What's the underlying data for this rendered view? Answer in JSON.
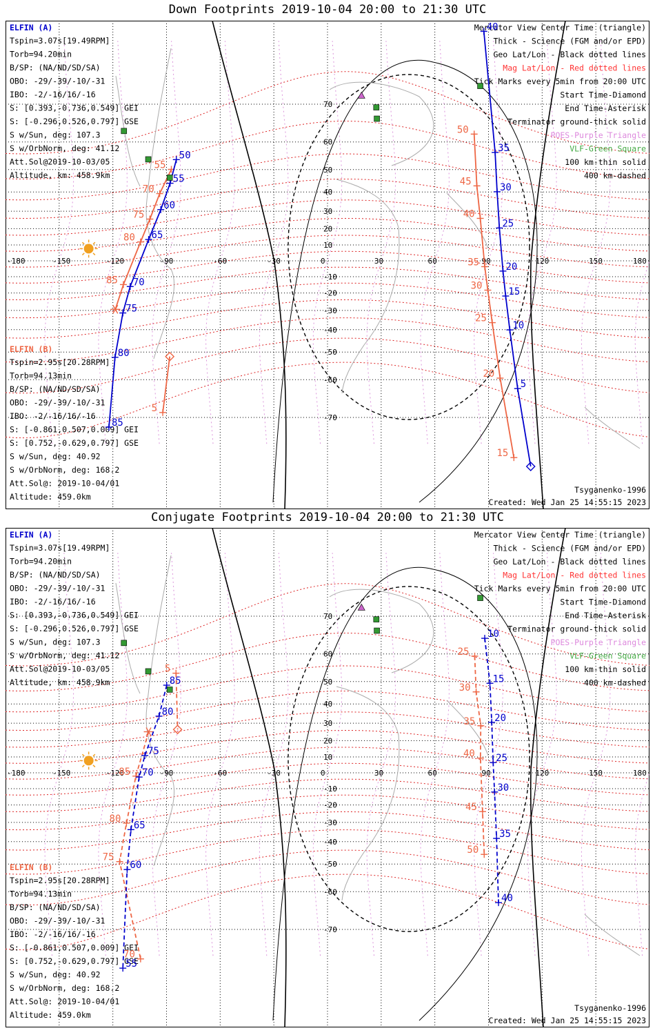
{
  "colors": {
    "elfin_a": "#0000cc",
    "elfin_b": "#ee6644",
    "mag_grid": "#dd2222",
    "geo_grid": "#000000",
    "poes": "#cc66cc",
    "vlf": "#339933",
    "sun": "#f0a020",
    "coast": "#aaaaaa",
    "mag_text": "#ff3333",
    "poes_text": "#dd88dd",
    "vlf_text": "#44aa44"
  },
  "legend_right": {
    "mercator": "Mercator View Center Time (triangle)",
    "thick": "Thick - Science (FGM and/or EPD)",
    "geo": "Geo Lat/Lon - Black dotted lines",
    "mag": "Mag Lat/Lon - Red dotted lines",
    "ticks": "Tick Marks every 5min from 20:00 UTC",
    "start": "Start Time-Diamond",
    "end": "End Time-Asterisk",
    "terminator": "Terminator ground-thick solid",
    "poes": "POES-Purple Triangle",
    "vlf": "VLF-Green Square",
    "km100": "100 km-thin solid",
    "km400": "400 km-dashed",
    "model": "Tsyganenko-1996",
    "created": "Created: Wed Jan 25 14:55:15 2023"
  },
  "elfin_a": {
    "name": "ELFIN (A)",
    "lines": [
      "Tspin=3.07s[19.49RPM]",
      "Torb=94.20min",
      "B/SP: (NA/ND/SD/SA)",
      "OBO: -29/-39/-10/-31",
      "IBO: -2/-16/16/-16",
      "S: [0.393,-0.736,0.549] GEI",
      "S: [-0.296,0.526,0.797] GSE",
      "S w/Sun, deg: 107.3",
      "S w/OrbNorm, deg: 41.12",
      "Att.Sol@2019-10-03/05",
      "Altitude, km: 458.9km"
    ]
  },
  "elfin_b": {
    "name": "ELFIN (B)",
    "lines": [
      "Tspin=2.95s[20.28RPM]",
      "Torb=94.13min",
      "B/SP: (NA/ND/SD/SA)",
      "OBO: -29/-39/-10/-31",
      "IBO: -2/-16/16/-16",
      "S: [-0.861,0.507,0.009] GEI",
      "S: [0.752,-0.629,0.797] GSE",
      "S w/Sun, deg: 40.92",
      "S w/OrbNorm, deg: 168.2",
      "Att.Sol@: 2019-10-04/01",
      "Altitude: 459.0km"
    ]
  },
  "lon_labels": [
    "-180",
    "-150",
    "-120",
    "-90",
    "-60",
    "-30",
    "0",
    "30",
    "60",
    "90",
    "120",
    "150",
    "180"
  ],
  "lat_labels": [
    "70",
    "60",
    "50",
    "40",
    "30",
    "20",
    "10",
    "0",
    "-10",
    "-20",
    "-30",
    "-40",
    "-50",
    "-60",
    "-70"
  ],
  "panels": [
    {
      "title": "Down Footprints 2019-10-04 20:00 to 21:30 UTC",
      "dashed": false,
      "tracks": {
        "b_west": {
          "ticks": [
            [
              "55",
              "50.1 -87.3"
            ],
            [
              "70",
              "39.2 -93.8"
            ],
            [
              "75",
              "25.6 -99.3"
            ],
            [
              "80",
              "11.9 -104.5"
            ],
            [
              "85",
              "-14.9 -114.1"
            ]
          ],
          "asterisk": "-29.4 -118.6",
          "diamond": null
        },
        "a_west": {
          "ticks": [
            [
              "50",
              "53.9 -84.5"
            ],
            [
              "55",
              "44.1 -88.0"
            ],
            [
              "60",
              "30.9 -93.2"
            ],
            [
              "65",
              "13.4 -100.0"
            ],
            [
              "70",
              "-16.1 -110.3"
            ],
            [
              "75",
              "-31.4 -114.4"
            ],
            [
              "80",
              "-52.1 -118.8"
            ],
            [
              "85",
              "-72.0 -122.2"
            ]
          ],
          "asterisk": null,
          "diamond": null
        },
        "b_west2": {
          "ticks": [
            [
              "5",
              "-68.9 -92.1"
            ]
          ],
          "asterisk": null,
          "diamond": "-51.8 -88.2"
        },
        "b_east": {
          "ticks": [
            [
              "50",
              "62.4 82.0"
            ],
            [
              "45",
              "42.9 83.5"
            ],
            [
              "40",
              "26.0 85.4"
            ],
            [
              "35",
              "-3.7 87.9"
            ],
            [
              "30",
              "-18.3 89.6"
            ],
            [
              "25",
              "-36.5 92.1"
            ],
            [
              "20",
              "-59.5 96.5"
            ],
            [
              "15",
              "-77.1 104.2"
            ]
          ],
          "asterisk": null,
          "diamond": null
        },
        "a_east": {
          "ticks": [
            [
              "40",
              "81.0 87.4"
            ],
            [
              "35",
              "56.5 93.7"
            ],
            [
              "30",
              "40.1 94.8"
            ],
            [
              "25",
              "20.4 96.1"
            ],
            [
              "20",
              "-6.5 98.1"
            ],
            [
              "15",
              "-21.8 99.6"
            ],
            [
              "10",
              "-40.1 101.9"
            ],
            [
              "5",
              "-62.7 106.3"
            ]
          ],
          "asterisk": null,
          "diamond": "-78.3 113.6"
        }
      },
      "poes": [
        [
          "83.3 17.1"
        ],
        [
          "71.8 19.0"
        ]
      ],
      "vlf": [
        [
          "54.0 -100.2"
        ],
        [
          "46.6 -88.2"
        ],
        [
          "63.3 -113.8"
        ],
        [
          "69.3 27.3"
        ],
        [
          "66.6 27.6"
        ],
        [
          "73.6 85.4"
        ]
      ],
      "sun": "7.7 -133.5"
    },
    {
      "title": "Conjugate Footprints 2019-10-04 20:00 to 21:30 UTC",
      "dashed": true,
      "tracks": {
        "b_west": {
          "ticks": [
            [
              "70",
              "-75.5 -104.5"
            ],
            [
              "75",
              "-49.0 -116.2"
            ],
            [
              "80",
              "-30.4 -112.4"
            ],
            [
              "85",
              "-2.1 -107.1"
            ]
          ],
          "asterisk": "25.2 -100.0",
          "diamond": null
        },
        "a_west": {
          "ticks": [
            [
              "85",
              "48.5 -89.9"
            ],
            [
              "80",
              "33.8 -94.2"
            ],
            [
              "75",
              "10.9 -102.1"
            ],
            [
              "70",
              "-2.7 -105.3"
            ],
            [
              "65",
              "-33.9 -109.9"
            ],
            [
              "60",
              "-52.2 -112.0"
            ],
            [
              "55",
              "-76.9 -114.4"
            ]
          ],
          "asterisk": null,
          "diamond": null
        },
        "b_west2": {
          "ticks": [
            [
              "5",
              "53.3 -84.7"
            ]
          ],
          "asterisk": null,
          "diamond": "26.5 -83.8"
        },
        "b_east": {
          "ticks": [
            [
              "25",
              "59.3 82.3"
            ],
            [
              "30",
              "45.6 83.1"
            ],
            [
              "35",
              "28.6 85.7"
            ],
            [
              "40",
              "9.3 85.5"
            ],
            [
              "45",
              "-23.9 86.7"
            ],
            [
              "50",
              "-45.9 87.6"
            ]
          ],
          "asterisk": null,
          "diamond": null
        },
        "a_east": {
          "ticks": [
            [
              "10",
              "64.6 87.9"
            ],
            [
              "15",
              "49.3 90.8"
            ],
            [
              "20",
              "30.5 91.8"
            ],
            [
              "25",
              "6.5 92.6"
            ],
            [
              "30",
              "-12.1 93.4"
            ],
            [
              "35",
              "-38.4 94.5"
            ],
            [
              "40",
              "-63.3 95.6"
            ]
          ],
          "asterisk": null,
          "diamond": null
        }
      },
      "poes": [
        [
          "83.3 17.1"
        ],
        [
          "71.8 19.0"
        ]
      ],
      "vlf": [
        [
          "54.0 -100.2"
        ],
        [
          "46.6 -88.2"
        ],
        [
          "63.3 -113.8"
        ],
        [
          "69.3 27.3"
        ],
        [
          "66.6 27.6"
        ],
        [
          "73.6 85.4"
        ]
      ],
      "sun": "7.7 -133.5"
    }
  ]
}
